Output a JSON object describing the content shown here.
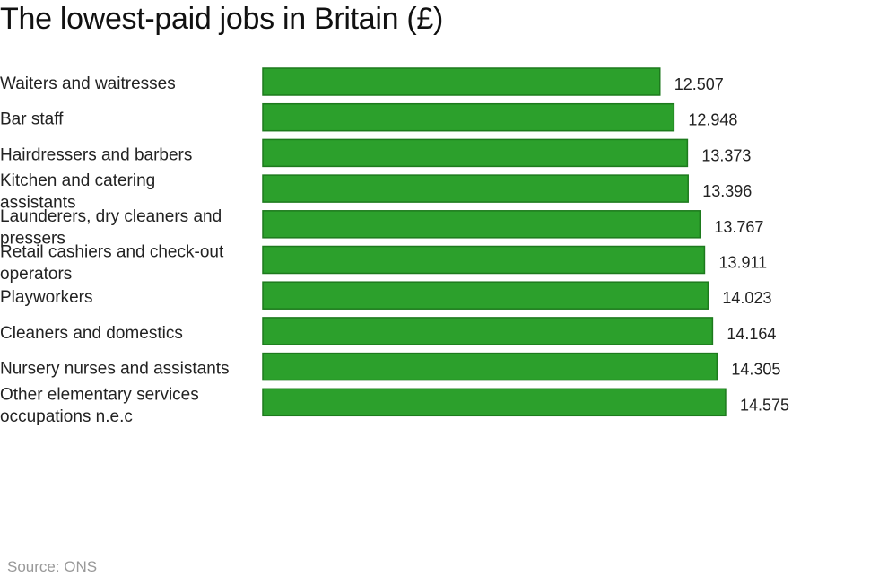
{
  "chart_data": {
    "type": "bar",
    "orientation": "horizontal",
    "title": "The lowest-paid jobs in Britain (£)",
    "xlabel": "",
    "ylabel": "",
    "categories": [
      "Waiters and waitresses",
      "Bar staff",
      "Hairdressers and barbers",
      "Kitchen and catering assistants",
      "Launderers, dry cleaners and pressers",
      "Retail cashiers and check-out operators",
      "Playworkers",
      "Cleaners and domestics",
      "Nursery nurses and assistants",
      "Other elementary services occupations n.e.c"
    ],
    "category_lines": [
      [
        "Waiters and waitresses"
      ],
      [
        "Bar staff"
      ],
      [
        "Hairdressers and barbers"
      ],
      [
        "Kitchen and catering",
        "assistants"
      ],
      [
        "Launderers, dry cleaners and",
        "pressers"
      ],
      [
        "Retail cashiers and check-out",
        "operators"
      ],
      [
        "Playworkers"
      ],
      [
        "Cleaners and domestics"
      ],
      [
        "Nursery nurses and assistants"
      ],
      [
        "Other elementary services",
        "occupations n.e.c"
      ]
    ],
    "values": [
      12.507,
      12.948,
      13.373,
      13.396,
      13.767,
      13.911,
      14.023,
      14.164,
      14.305,
      14.575
    ],
    "value_labels": [
      "12.507",
      "12.948",
      "13.373",
      "13.396",
      "13.767",
      "13.911",
      "14.023",
      "14.164",
      "14.305",
      "14.575"
    ],
    "xlim": [
      0,
      15.6
    ],
    "grid": false,
    "axis_lines": false,
    "bar_color": "#2ca02c",
    "bar_edge_color": "#1d7a1d"
  },
  "source": "Source: ONS"
}
